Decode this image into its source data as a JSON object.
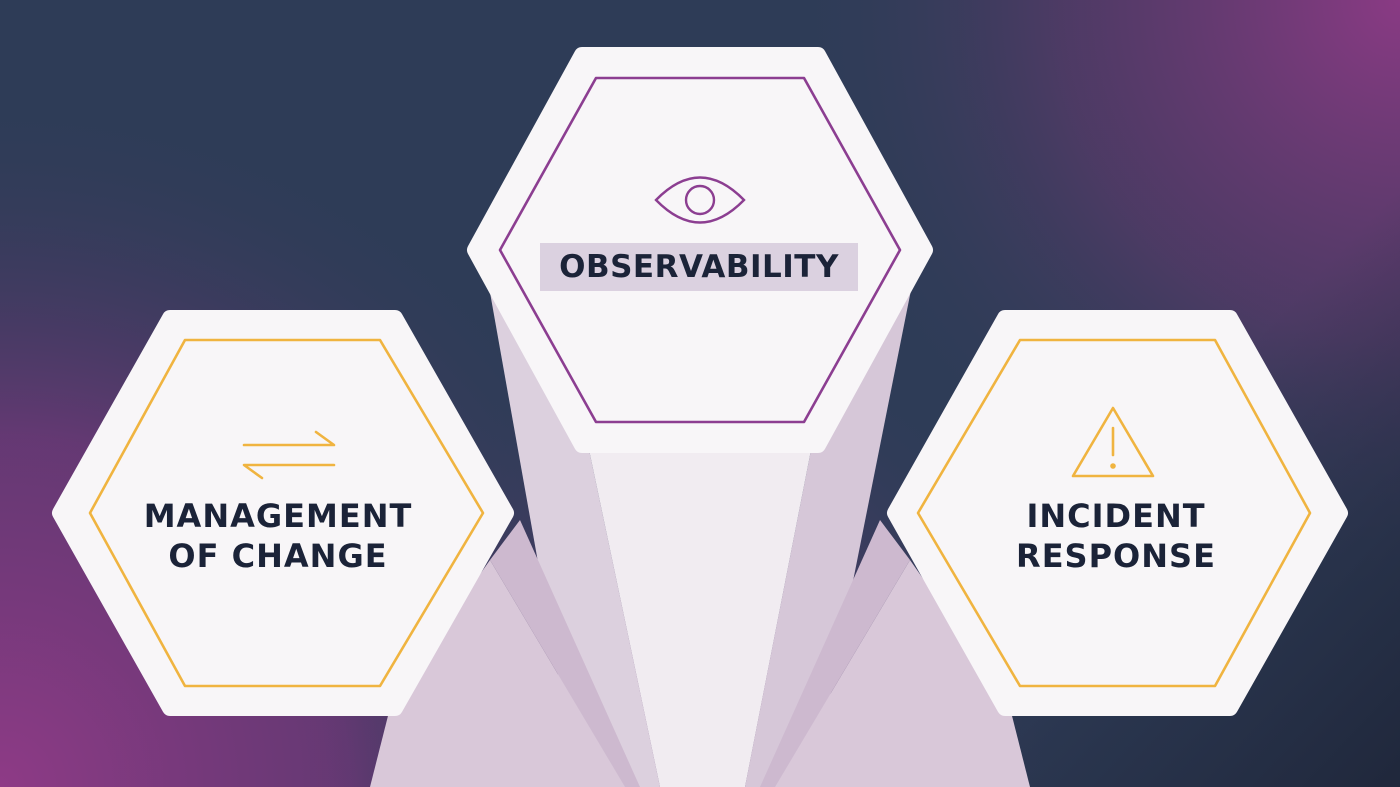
{
  "colors": {
    "background_dark": "#2e3c57",
    "background_purple": "#8a3a84",
    "hex_fill": "#f8f6f8",
    "hex_shadow": "#d9c8d9",
    "accent_purple": "#8c3e91",
    "accent_gold": "#f0b440",
    "text_dark": "#1b2338"
  },
  "pillars": [
    {
      "id": "observability",
      "icon": "eye-icon",
      "label_lines": [
        "OBSERVABILITY"
      ],
      "border_color": "#8c3e91"
    },
    {
      "id": "management-of-change",
      "icon": "swap-arrows-icon",
      "label_lines": [
        "MANAGEMENT",
        "OF CHANGE"
      ],
      "border_color": "#f0b440"
    },
    {
      "id": "incident-response",
      "icon": "warning-triangle-icon",
      "label_lines": [
        "INCIDENT",
        "RESPONSE"
      ],
      "border_color": "#f0b440"
    }
  ]
}
